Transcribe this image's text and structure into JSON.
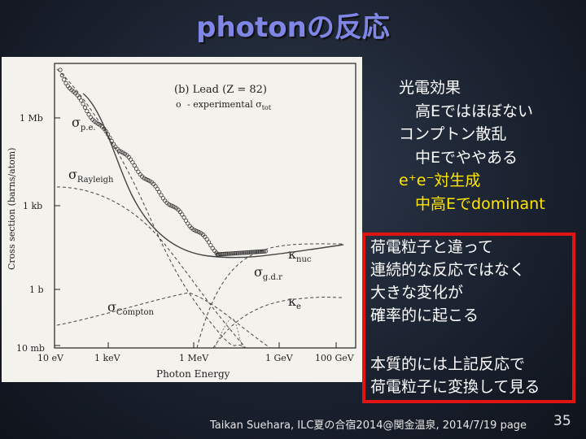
{
  "title": "photonの反応",
  "figure": {
    "panel_label": "(b) Lead (Z = 82)",
    "legend_marker": "o",
    "legend_text": "- experimental σ",
    "legend_sub": "tot",
    "ylabel": "Cross section  (barns/atom)",
    "xlabel": "Photon Energy",
    "yticks": [
      "1 Mb",
      "1 kb",
      "1 b",
      "10 mb"
    ],
    "xticks": [
      "10 eV",
      "1 keV",
      "1 MeV",
      "1 GeV",
      "100 GeV"
    ],
    "labels": {
      "pe": "σ",
      "pe_sub": "p.e.",
      "rayleigh": "σ",
      "rayleigh_sub": "Rayleigh",
      "compton": "σ",
      "compton_sub": "Compton",
      "gdr": "σ",
      "gdr_sub": "g.d.r",
      "knuc": "κ",
      "knuc_sub": "nuc",
      "ke": "κ",
      "ke_sub": "e"
    }
  },
  "right_text": {
    "line1": "光電効果",
    "line2": "高Eではほぼない",
    "line3": "コンプトン散乱",
    "line4": "中Eでややある",
    "line5": "e⁺e⁻対生成",
    "line6": "中高Eでdominant"
  },
  "box_text": {
    "line1": "荷電粒子と違って",
    "line2": "連続的な反応ではなく",
    "line3": "大きな変化が",
    "line4": "確率的に起こる",
    "line5": "本質的には上記反応で",
    "line6": "荷電粒子に変換して見る"
  },
  "footer": "Taikan Suehara, ILC夏の合宿2014@関金温泉, 2014/7/19  page",
  "page_number": "35",
  "colors": {
    "title": "#7f86e6",
    "highlight": "#ffe600",
    "box_border": "#e11414"
  }
}
